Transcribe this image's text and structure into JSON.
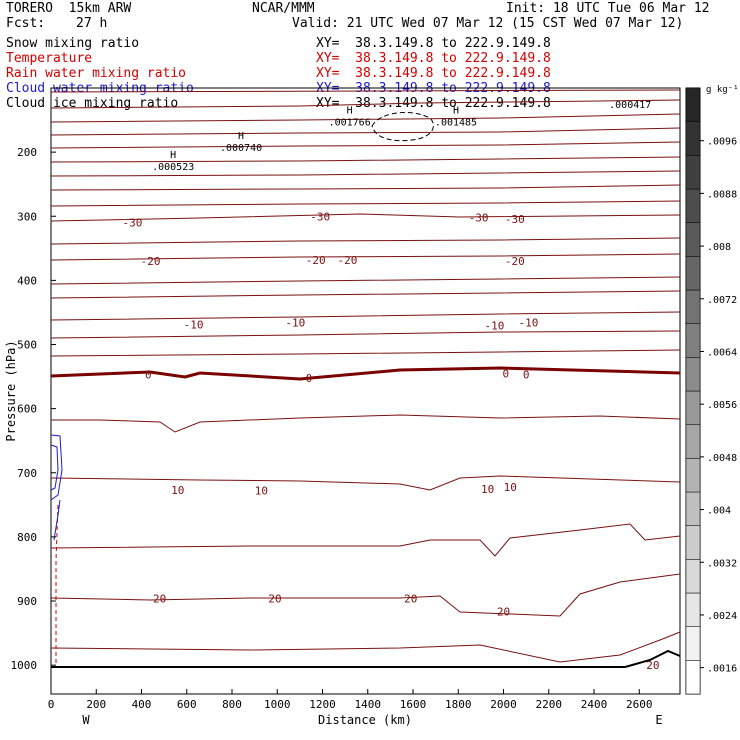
{
  "header": {
    "model": "TORERO  15km ARW",
    "org": "NCAR/MMM",
    "init": "Init: 18 UTC Tue 06 Mar 12",
    "fcst_label": "Fcst:",
    "fcst_value": "27 h",
    "valid": "Valid: 21 UTC Wed 07 Mar 12 (15 CST Wed 07 Mar 12)"
  },
  "fields": [
    {
      "name": "Snow mixing ratio",
      "xy": "XY=  38.3.149.8 to 222.9.149.8",
      "color": "#000000"
    },
    {
      "name": "Temperature",
      "xy": "XY=  38.3.149.8 to 222.9.149.8",
      "color": "#d40000"
    },
    {
      "name": "Rain water mixing ratio",
      "xy": "XY=  38.3.149.8 to 222.9.149.8",
      "color": "#d40000"
    },
    {
      "name": "Cloud water mixing ratio",
      "xy": "XY=  38.3.149.8 to 222.9.149.8",
      "color": "#1a1ad4"
    },
    {
      "name": "Cloud ice mixing ratio",
      "xy": "XY=  38.3.149.8 to 222.9.149.8",
      "color": "#000000"
    }
  ],
  "chart_data": {
    "type": "contour cross-section",
    "xlabel": "Distance (km)",
    "ylabel": "Pressure (hPa)",
    "xlim": [
      0,
      2780
    ],
    "ylim": [
      100,
      1045
    ],
    "x_ticks": [
      "0",
      "200",
      "400",
      "600",
      "800",
      "1000",
      "1200",
      "1400",
      "1600",
      "1800",
      "2000",
      "2200",
      "2400",
      "2600"
    ],
    "y_ticks": [
      "200",
      "300",
      "400",
      "500",
      "600",
      "700",
      "800",
      "900",
      "1000"
    ],
    "x_end_labels": {
      "left": "W",
      "right": "E"
    },
    "colorbar": {
      "unit": "g kg⁻¹",
      "ticks": [
        ".0016",
        ".0024",
        ".0032",
        ".004",
        ".0048",
        ".0056",
        ".0064",
        ".0072",
        ".008",
        ".0088",
        ".0096"
      ],
      "shades": [
        "#ffffff",
        "#f2f2f2",
        "#e6e6e6",
        "#d9d9d9",
        "#cccccc",
        "#bfbfbf",
        "#b3b3b3",
        "#a6a6a6",
        "#999999",
        "#8c8c8c",
        "#808080",
        "#737373",
        "#666666",
        "#595959",
        "#4d4d4d",
        "#404040",
        "#333333",
        "#262626"
      ]
    },
    "temperature_contour_labels": [
      {
        "text": "-30",
        "x": 360,
        "p": 310
      },
      {
        "text": "-30",
        "x": 1190,
        "p": 300
      },
      {
        "text": "-30",
        "x": 1890,
        "p": 302
      },
      {
        "text": "-30",
        "x": 2050,
        "p": 304
      },
      {
        "text": "-20",
        "x": 440,
        "p": 370
      },
      {
        "text": "-20",
        "x": 1170,
        "p": 368
      },
      {
        "text": "-20",
        "x": 1310,
        "p": 368
      },
      {
        "text": "-20",
        "x": 2050,
        "p": 370
      },
      {
        "text": "-10",
        "x": 630,
        "p": 469
      },
      {
        "text": "-10",
        "x": 1080,
        "p": 466
      },
      {
        "text": "-10",
        "x": 1960,
        "p": 470
      },
      {
        "text": "-10",
        "x": 2110,
        "p": 466
      },
      {
        "text": "0",
        "x": 430,
        "p": 547
      },
      {
        "text": "0",
        "x": 1140,
        "p": 552
      },
      {
        "text": "0",
        "x": 2010,
        "p": 545
      },
      {
        "text": "0",
        "x": 2100,
        "p": 547
      },
      {
        "text": "10",
        "x": 560,
        "p": 727
      },
      {
        "text": "10",
        "x": 930,
        "p": 728
      },
      {
        "text": "10",
        "x": 1930,
        "p": 725
      },
      {
        "text": "10",
        "x": 2030,
        "p": 722
      },
      {
        "text": "20",
        "x": 480,
        "p": 896
      },
      {
        "text": "20",
        "x": 990,
        "p": 896
      },
      {
        "text": "20",
        "x": 1590,
        "p": 896
      },
      {
        "text": "20",
        "x": 2000,
        "p": 916
      },
      {
        "text": "20",
        "x": 2660,
        "p": 1000
      }
    ],
    "extrema_labels": [
      {
        "mark": "H",
        "value": ".000523",
        "x": 540,
        "p": 225
      },
      {
        "mark": "H",
        "value": ".000740",
        "x": 840,
        "p": 195
      },
      {
        "mark": "H",
        "value": ".001766",
        "x": 1320,
        "p": 155
      },
      {
        "mark": "H",
        "value": ".001485",
        "x": 1790,
        "p": 155
      },
      {
        "mark": "",
        "value": ".000417",
        "x": 2560,
        "p": 128
      }
    ]
  }
}
